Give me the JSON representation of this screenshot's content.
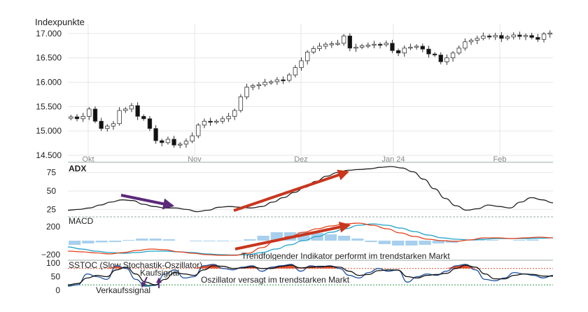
{
  "header": {
    "unit_label": "Indexpunkte"
  },
  "colors": {
    "candle_up_fill": "#ffffff",
    "candle_down_fill": "#111111",
    "candle_stroke": "#333333",
    "adx_line": "#222222",
    "macd_line": "#e0401a",
    "signal_line": "#1aa0c8",
    "histogram": "#a8d0ee",
    "sstoc_k": "#1b4f9c",
    "sstoc_d": "#111111",
    "overbought": "#e05030",
    "oversold": "#2a9a4a",
    "arrow_red": "#c8361e",
    "arrow_purple": "#5b2a7a",
    "grid": "#e6e6e6"
  },
  "annotations": {
    "trend_text": "Trendfolgender Indikator performt im trendstarken Markt",
    "osc_text": "Oszillator versagt im trendstarken Markt",
    "buy_signal": "Kaufsignal",
    "sell_signal": "Verkaufssignal"
  },
  "chart_data": [
    {
      "type": "candlestick",
      "ylabel": "Indexpunkte",
      "ylim": [
        14500,
        17200
      ],
      "y_ticks": [
        "14.500",
        "15.000",
        "15.500",
        "16.000",
        "16.500",
        "17.000"
      ],
      "y_tick_values": [
        14500,
        15000,
        15500,
        16000,
        16500,
        17000
      ],
      "x_ticks": [
        "Okt",
        "Nov",
        "Dez",
        "Jan 24",
        "Feb"
      ],
      "close": [
        15290,
        15250,
        15300,
        15450,
        15200,
        15050,
        15100,
        15150,
        15420,
        15450,
        15520,
        15300,
        15250,
        15050,
        14800,
        14760,
        14830,
        14710,
        14730,
        14790,
        14900,
        15120,
        15200,
        15180,
        15200,
        15250,
        15300,
        15420,
        15700,
        15900,
        15930,
        15950,
        16000,
        16010,
        16050,
        16040,
        16150,
        16300,
        16440,
        16620,
        16690,
        16740,
        16780,
        16790,
        16800,
        16950,
        16700,
        16720,
        16750,
        16760,
        16780,
        16770,
        16800,
        16650,
        16600,
        16700,
        16720,
        16740,
        16680,
        16580,
        16560,
        16420,
        16500,
        16600,
        16700,
        16830,
        16860,
        16900,
        16950,
        16930,
        16960,
        16900,
        16930,
        16970,
        16940,
        16960,
        16920,
        16880,
        16990,
        17010
      ],
      "volatility_note": ""
    },
    {
      "type": "line",
      "title": "ADX",
      "ylim": [
        15,
        85
      ],
      "y_ticks": [
        "25",
        "50",
        "75"
      ],
      "y_tick_values": [
        25,
        50,
        75
      ],
      "series": [
        {
          "values": [
            24,
            25,
            27,
            31,
            35,
            38,
            37,
            32,
            29,
            27,
            27,
            25,
            22,
            24,
            28,
            29,
            28,
            27,
            29,
            35,
            41,
            48,
            55,
            63,
            70,
            75,
            78,
            79,
            80,
            82,
            83,
            81,
            76,
            66,
            53,
            40,
            30,
            24,
            26,
            31,
            29,
            27,
            35,
            41,
            38,
            34
          ]
        }
      ]
    },
    {
      "type": "line",
      "title": "MACD",
      "ylim": [
        -240,
        260
      ],
      "y_ticks": [
        "200",
        "−200"
      ],
      "y_tick_values": [
        200,
        -200
      ],
      "series": [
        {
          "values": [
            -150,
            -160,
            -175,
            -190,
            -170,
            -140,
            -120,
            -130,
            -160,
            -180,
            -200,
            -210,
            -210,
            -180,
            -100,
            0,
            60,
            120,
            170,
            210,
            240,
            250,
            220,
            170,
            110,
            60,
            20,
            0,
            -10,
            10,
            40,
            40,
            30,
            40,
            50,
            40
          ]
        },
        {
          "values": [
            -90,
            -120,
            -150,
            -170,
            -180,
            -170,
            -150,
            -150,
            -160,
            -170,
            -190,
            -200,
            -205,
            -200,
            -170,
            -120,
            -60,
            0,
            60,
            120,
            170,
            220,
            240,
            220,
            180,
            130,
            80,
            40,
            20,
            10,
            20,
            30,
            30,
            30,
            35,
            40
          ]
        },
        {
          "values": [
            -60,
            -40,
            -25,
            -20,
            10,
            30,
            30,
            20,
            0,
            -10,
            -10,
            -10,
            -5,
            20,
            70,
            120,
            120,
            120,
            110,
            90,
            70,
            30,
            -20,
            -50,
            -70,
            -70,
            -60,
            -40,
            -30,
            0,
            20,
            10,
            0,
            10,
            15,
            0
          ]
        }
      ]
    },
    {
      "type": "line",
      "title": "SSTOC (Slow Stochastik-Oszillator)",
      "ylim": [
        0,
        100
      ],
      "y_ticks": [
        "100",
        "50",
        "0"
      ],
      "y_tick_values": [
        100,
        50,
        0
      ],
      "overbought": 80,
      "oversold": 20,
      "series": [
        {
          "values": [
            15,
            20,
            60,
            50,
            40,
            90,
            80,
            40,
            15,
            18,
            60,
            75,
            45,
            50,
            90,
            95,
            80,
            75,
            85,
            90,
            70,
            85,
            90,
            95,
            70,
            90,
            85,
            90,
            80,
            55,
            45,
            65,
            80,
            70,
            75,
            30,
            50,
            60,
            55,
            70,
            90,
            95,
            75,
            40,
            35,
            45,
            65,
            60,
            55,
            45,
            55
          ]
        },
        {
          "values": [
            20,
            25,
            45,
            55,
            50,
            75,
            85,
            60,
            30,
            20,
            40,
            65,
            60,
            55,
            75,
            90,
            88,
            80,
            82,
            86,
            80,
            80,
            88,
            92,
            82,
            85,
            88,
            88,
            85,
            70,
            55,
            58,
            72,
            75,
            74,
            50,
            45,
            55,
            58,
            62,
            80,
            92,
            85,
            60,
            42,
            42,
            55,
            60,
            58,
            52,
            52
          ]
        }
      ]
    }
  ]
}
